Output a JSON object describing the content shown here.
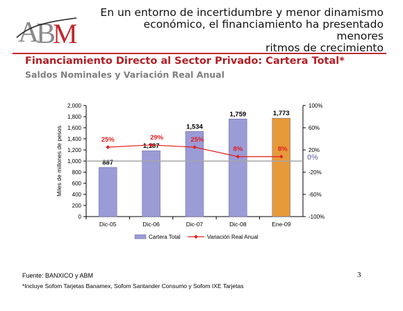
{
  "slide": {
    "logo_text": "ABM",
    "headline_lines": [
      "En un entorno de incertidumbre y menor dinamismo",
      "económico, el financiamiento ha presentado menores",
      "ritmos de crecimiento"
    ],
    "title": "Financiamiento Directo al  Sector Privado: Cartera Total*",
    "subtitle": "Saldos Nominales y Variación Real Anual",
    "source": "Fuente:  BANXICO y ABM",
    "note": "*Incluye Sofom Tarjetas Banamex, Sofom Santander Consumo y Sofom IXE Tarjetas",
    "page_number": "3"
  },
  "colors": {
    "accent_red": "#c0282d",
    "bar_fill": "#9b9bd6",
    "bar_highlight": "#e69a3a",
    "line": "#e02020",
    "zero_line": "#a6a6a6"
  },
  "chart_data": {
    "type": "bar",
    "categories": [
      "Dic-05",
      "Dic-06",
      "Dic-07",
      "Dic-08",
      "Ene-09"
    ],
    "series": [
      {
        "name": "Cartera Total",
        "type": "bar",
        "axis": "left",
        "values": [
          887,
          1187,
          1534,
          1759,
          1773
        ],
        "labels": [
          "887",
          "1,187",
          "1,534",
          "1,759",
          "1,773"
        ]
      },
      {
        "name": "Variación Real Anual",
        "type": "line",
        "axis": "right",
        "values": [
          25,
          29,
          25,
          8,
          8
        ],
        "labels": [
          "25%",
          "29%",
          "25%",
          "8%",
          "8%"
        ]
      }
    ],
    "ylabel": "Miles de millones de pesos",
    "ylim": [
      0,
      2000
    ],
    "yticks": [
      "0",
      "200",
      "400",
      "600",
      "800",
      "1,000",
      "1,200",
      "1,400",
      "1,600",
      "1,800",
      "2,000"
    ],
    "y2lim": [
      -100,
      100
    ],
    "y2ticks": [
      "-100%",
      "-60%",
      "-20%",
      "20%",
      "60%",
      "100%"
    ],
    "reference_line": {
      "value": 0,
      "label": "0%"
    },
    "legend_position": "bottom"
  }
}
